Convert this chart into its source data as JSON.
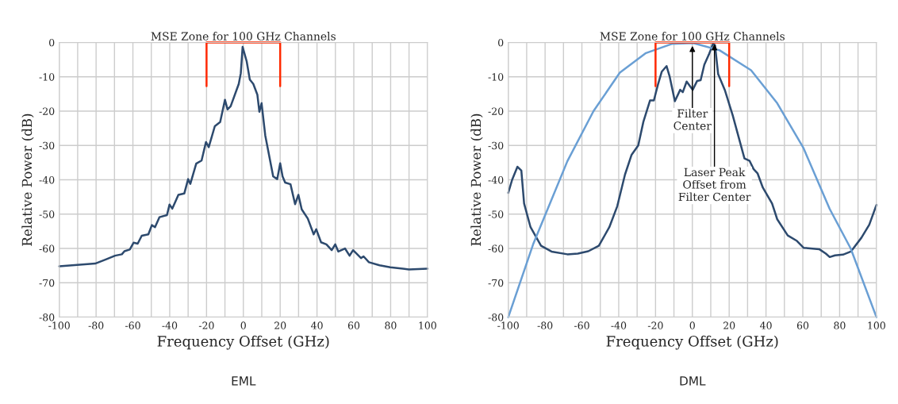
{
  "chart_data": [
    {
      "type": "line",
      "title": "MSE Zone for 100 GHz Channels",
      "xlabel": "Frequency Offset (GHz)",
      "ylabel": "Relative Power (dB)",
      "x": [
        -100,
        -80.5,
        -74.7,
        -69.7,
        -66,
        -64.6,
        -61.7,
        -59.6,
        -57.4,
        -55.2,
        -51.6,
        -49.7,
        -48,
        -45.6,
        -41.5,
        -40.1,
        -38.6,
        -35.3,
        -32.1,
        -30,
        -28.8,
        -25.6,
        -22.7,
        -20.3,
        -18.8,
        -15.5,
        -12.6,
        -10,
        -8.6,
        -6.9,
        -2.5,
        -1.4,
        -0.4,
        1.8,
        3.5,
        5.4,
        7.6,
        8.7,
        9.9,
        11.9,
        16.2,
        18.4,
        20,
        21.3,
        22.7,
        25.6,
        28.1,
        29.9,
        31.7,
        35,
        38.2,
        39.6,
        42.2,
        45.1,
        48,
        49.9,
        51.6,
        55.2,
        57.7,
        59.6,
        63.9,
        65.3,
        68.2,
        74,
        79.8,
        89.9,
        100
      ],
      "series": [
        {
          "color": "#2d4a6e",
          "values": [
            -65.2,
            -64.4,
            -63.2,
            -62.1,
            -61.7,
            -60.8,
            -60.3,
            -58.3,
            -58.6,
            -56.3,
            -55.9,
            -53.2,
            -53.8,
            -50.9,
            -50.3,
            -47.2,
            -48.4,
            -44.4,
            -44.0,
            -39.8,
            -41.2,
            -35.3,
            -34.4,
            -29.0,
            -30.5,
            -24.4,
            -23.2,
            -16.7,
            -19.5,
            -18.6,
            -12.1,
            -9.0,
            -1.3,
            -5.5,
            -10.8,
            -12.1,
            -15.2,
            -20.2,
            -17.7,
            -27.1,
            -39.0,
            -39.8,
            -35.2,
            -39.0,
            -40.8,
            -41.3,
            -47.1,
            -44.4,
            -48.6,
            -51.3,
            -55.9,
            -54.4,
            -58.2,
            -58.8,
            -60.5,
            -58.8,
            -60.9,
            -60.0,
            -62.1,
            -60.5,
            -62.8,
            -62.3,
            -64.0,
            -64.9,
            -65.5,
            -66.1,
            -65.9
          ]
        },
        {
          "color": "#ff2a00",
          "x": [
            -20,
            -20,
            20,
            20
          ],
          "values": [
            -12.7,
            0,
            0,
            -12.7
          ]
        }
      ],
      "xlim": [
        -100,
        100
      ],
      "ylim": [
        -80,
        0
      ],
      "xticks": [
        -100,
        {
          "value": -90,
          "label": null
        },
        -80,
        {
          "value": -70,
          "label": null
        },
        -60,
        {
          "value": -50,
          "label": null
        },
        -40,
        {
          "value": -30,
          "label": null
        },
        -20,
        {
          "value": -10,
          "label": null
        },
        0,
        {
          "value": 10,
          "label": null
        },
        20,
        {
          "value": 30,
          "label": null
        },
        40,
        {
          "value": 50,
          "label": null
        },
        60,
        {
          "value": 70,
          "label": null
        },
        80,
        {
          "value": 90,
          "label": null
        },
        100
      ],
      "yticks": [
        0,
        -10,
        -20,
        -30,
        -40,
        -50,
        -60,
        -70,
        -80
      ],
      "grid": true,
      "line_style": "solid",
      "marker": "none",
      "annotations": [
        "EML"
      ]
    },
    {
      "type": "line",
      "title": "MSE Zone for 100 GHz Channels",
      "xlabel": "Frequency Offset (GHz)",
      "ylabel": "Relative Power (dB)",
      "series": [
        {
          "color": "#2d4a6e",
          "x": [
            -100,
            -97.9,
            -95,
            -92.9,
            -91.4,
            -87.9,
            -82.2,
            -76.5,
            -67.9,
            -62.2,
            -56.5,
            -50.8,
            -45.1,
            -40.8,
            -36.6,
            -33,
            -29.4,
            -26.6,
            -23,
            -20.9,
            -18.7,
            -16.6,
            -14,
            -12.3,
            -9.5,
            -6.6,
            -5.2,
            -3.1,
            0.2,
            2.6,
            4.5,
            6.5,
            9.0,
            11.2,
            12.3,
            14,
            17.6,
            21.9,
            28.3,
            31.1,
            33.3,
            35.4,
            38.3,
            43.3,
            46.1,
            51.8,
            56.8,
            60.4,
            68.9,
            72.5,
            74.6,
            77.5,
            81.8,
            86.1,
            91.8,
            96.1,
            100
          ],
          "values": [
            -43.8,
            -40,
            -36.2,
            -37.3,
            -46.9,
            -53.8,
            -59.2,
            -60.9,
            -61.7,
            -61.5,
            -60.8,
            -59.2,
            -53.8,
            -47.7,
            -38.5,
            -32.7,
            -30.0,
            -23.1,
            -16.9,
            -16.9,
            -12.3,
            -8.5,
            -6.9,
            -10,
            -17.1,
            -13.8,
            -14.5,
            -11.4,
            -13.8,
            -11.2,
            -11.0,
            -6.5,
            -3.5,
            -0.4,
            -0.8,
            -9.2,
            -13.8,
            -21.2,
            -33.8,
            -34.5,
            -36.9,
            -38.1,
            -42.3,
            -46.9,
            -51.5,
            -56.2,
            -57.8,
            -59.8,
            -60.2,
            -61.5,
            -62.5,
            -62.0,
            -61.8,
            -60.9,
            -56.9,
            -53.1,
            -47.3
          ]
        },
        {
          "color": "#6a9fd4",
          "x": [
            -100,
            -86.5,
            -67.9,
            -53.7,
            -39.4,
            -25.2,
            -10.9,
            0.5,
            14.8,
            31.9,
            46.1,
            60.4,
            74.6,
            86,
            100
          ],
          "values": [
            -80,
            -58.8,
            -34.6,
            -20,
            -8.8,
            -3.1,
            -0.4,
            -0.2,
            -2.3,
            -8.1,
            -17.7,
            -30.8,
            -48.5,
            -60,
            -80
          ]
        },
        {
          "color": "#ff2a00",
          "x": [
            -20,
            -20,
            20,
            20
          ],
          "values": [
            -12.7,
            0,
            0,
            -12.7
          ]
        }
      ],
      "xlim": [
        -100,
        100
      ],
      "ylim": [
        -80,
        0
      ],
      "xticks": [
        -100,
        {
          "value": -90,
          "label": null
        },
        -80,
        {
          "value": -70,
          "label": null
        },
        -60,
        {
          "value": -50,
          "label": null
        },
        -40,
        {
          "value": -30,
          "label": null
        },
        -20,
        {
          "value": -10,
          "label": null
        },
        0,
        {
          "value": 10,
          "label": null
        },
        20,
        {
          "value": 30,
          "label": null
        },
        40,
        {
          "value": 50,
          "label": null
        },
        60,
        {
          "value": 70,
          "label": null
        },
        80,
        {
          "value": 90,
          "label": null
        },
        100
      ],
      "yticks": [
        0,
        -10,
        -20,
        -30,
        -40,
        -50,
        -60,
        -70,
        -80
      ],
      "grid": true,
      "line_style": "solid",
      "marker": "none",
      "annotations": [
        {
          "text": "Filter\nCenter",
          "x": 0,
          "y": -1
        },
        {
          "text": "Laser Peak\nOffset from\nFilter Center",
          "x": 12,
          "y": -0.5
        },
        "DML"
      ]
    }
  ]
}
